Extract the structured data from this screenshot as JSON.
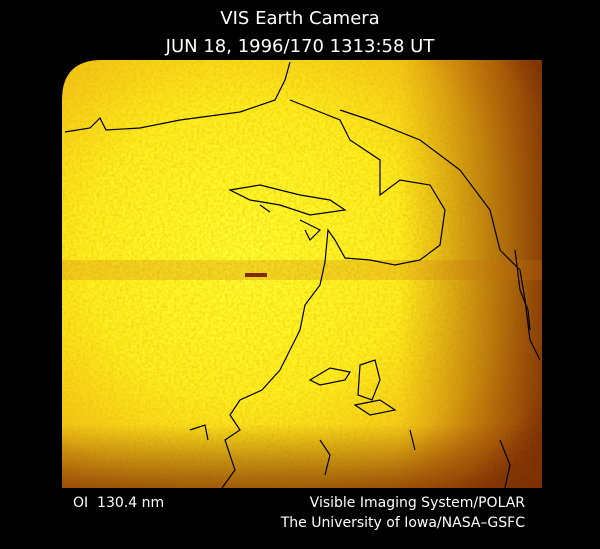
{
  "header": {
    "title": "VIS Earth Camera",
    "timestamp": "JUN 18, 1996/170 1313:58 UT"
  },
  "footer": {
    "filter": "OI  130.4 nm",
    "instrument": "Visible Imaging System/POLAR",
    "credit": "The University of Iowa/NASA–GSFC"
  }
}
